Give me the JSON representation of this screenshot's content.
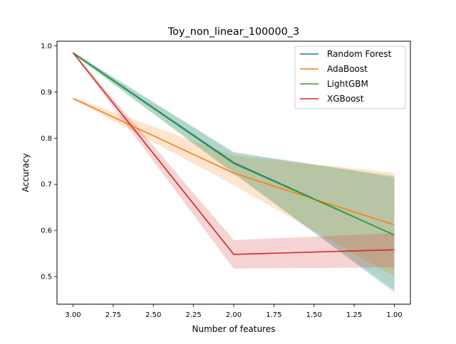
{
  "chart_data": {
    "type": "line",
    "title": "Toy_non_linear_100000_3",
    "xlabel": "Number of features",
    "ylabel": "Accuracy",
    "x": [
      3.0,
      2.0,
      1.0
    ],
    "xlim": [
      3.1,
      0.9
    ],
    "ylim": [
      0.44,
      1.01
    ],
    "x_ticks": [
      3.0,
      2.75,
      2.5,
      2.25,
      2.0,
      1.75,
      1.5,
      1.25,
      1.0
    ],
    "x_tick_labels": [
      "3.00",
      "2.75",
      "2.50",
      "2.25",
      "2.00",
      "1.75",
      "1.50",
      "1.25",
      "1.00"
    ],
    "y_ticks": [
      0.5,
      0.6,
      0.7,
      0.8,
      0.9,
      1.0
    ],
    "y_tick_labels": [
      "0.5",
      "0.6",
      "0.7",
      "0.8",
      "0.9",
      "1.0"
    ],
    "grid": false,
    "legend_position": "top-right",
    "series": [
      {
        "name": "Random Forest",
        "color": "#1f77b4",
        "values": [
          0.985,
          0.747,
          0.59
        ],
        "lower": [
          0.983,
          0.725,
          0.465
        ],
        "upper": [
          0.987,
          0.77,
          0.715
        ]
      },
      {
        "name": "AdaBoost",
        "color": "#ff7f0e",
        "values": [
          0.886,
          0.724,
          0.612
        ],
        "lower": [
          0.884,
          0.698,
          0.5
        ],
        "upper": [
          0.888,
          0.762,
          0.725
        ]
      },
      {
        "name": "LightGBM",
        "color": "#2ca02c",
        "values": [
          0.984,
          0.745,
          0.59
        ],
        "lower": [
          0.982,
          0.722,
          0.47
        ],
        "upper": [
          0.986,
          0.768,
          0.718
        ]
      },
      {
        "name": "XGBoost",
        "color": "#d62728",
        "values": [
          0.985,
          0.548,
          0.558
        ],
        "lower": [
          0.983,
          0.517,
          0.52
        ],
        "upper": [
          0.987,
          0.579,
          0.594
        ]
      }
    ]
  }
}
